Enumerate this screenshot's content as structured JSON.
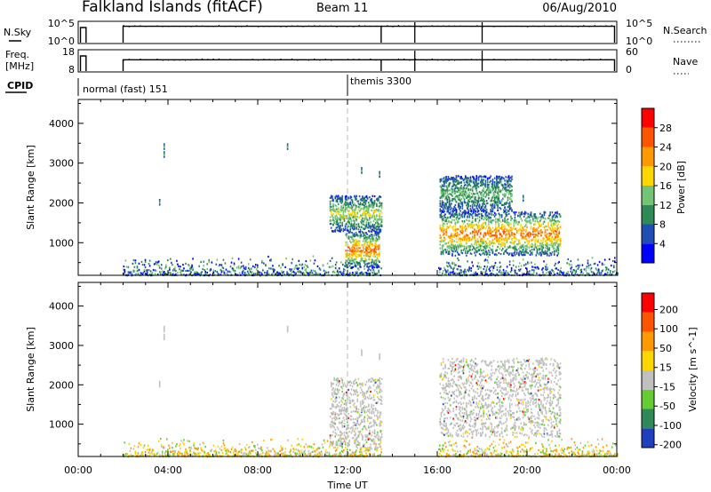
{
  "header": {
    "title": "Falkland Islands (fitACF)",
    "beam": "Beam 11",
    "date": "06/Aug/2010"
  },
  "noise_panel": {
    "left_label": "N.Sky",
    "left_ticks": [
      "10^5",
      "10^0"
    ],
    "right_label": "N.Search",
    "right_ticks": [
      "10^5",
      "10^0"
    ]
  },
  "freq_panel": {
    "left_label_1": "Freq.",
    "left_label_2": "[MHz]",
    "left_ticks": [
      18,
      8
    ],
    "right_label": "Nave",
    "right_ticks": [
      60,
      0
    ]
  },
  "cpid_panel": {
    "label": "CPID",
    "programs": [
      {
        "name": "normal (fast) 151",
        "start_hour": 0.1
      },
      {
        "name": "themis 3300",
        "start_hour": 12.0
      }
    ]
  },
  "time_axis": {
    "label": "Time UT",
    "range_hours": [
      0,
      24
    ],
    "tick_labels": [
      "00:00",
      "04:00",
      "08:00",
      "12:00",
      "16:00",
      "20:00",
      "00:00"
    ],
    "tick_hours": [
      0,
      4,
      8,
      12,
      16,
      20,
      24
    ]
  },
  "chart_data": [
    {
      "type": "heatmap",
      "name": "power",
      "ylabel": "Slant Range [km]",
      "ylim": [
        180,
        4600
      ],
      "yticks": [
        1000,
        2000,
        3000,
        4000
      ],
      "colorbar_label": "Power [dB]",
      "colorbar_ticks": [
        4,
        8,
        12,
        16,
        20,
        24,
        28
      ],
      "colorbar_range": [
        0,
        32
      ],
      "colors": [
        "#0000ff",
        "#1f4fb5",
        "#2e8b57",
        "#74c476",
        "#ffd700",
        "#ff9900",
        "#ff5500",
        "#ff0000"
      ],
      "data_gaps_hours": [
        [
          0.35,
          2.0
        ],
        [
          13.5,
          16.0
        ]
      ],
      "echo_regions": [
        {
          "t": [
            11.2,
            13.5
          ],
          "range": [
            1300,
            2200
          ],
          "level": 3
        },
        {
          "t": [
            11.9,
            13.4
          ],
          "range": [
            400,
            1300
          ],
          "level": 5
        },
        {
          "t": [
            16.1,
            21.5
          ],
          "range": [
            700,
            1800
          ],
          "level": 5
        },
        {
          "t": [
            16.1,
            19.3
          ],
          "range": [
            1800,
            2700
          ],
          "level": 2
        }
      ]
    },
    {
      "type": "heatmap",
      "name": "velocity",
      "ylabel": "Slant Range [km]",
      "ylim": [
        180,
        4600
      ],
      "yticks": [
        1000,
        2000,
        3000,
        4000
      ],
      "colorbar_label": "Velocity [m s^-1]",
      "colorbar_ticks": [
        200,
        100,
        50,
        15,
        -15,
        -50,
        -100,
        -200
      ],
      "colors": [
        "#1f3fbf",
        "#2e8b57",
        "#66cc33",
        "#c0c0c0",
        "#ffd700",
        "#ff9900",
        "#ff5500",
        "#ff0000"
      ],
      "echo_regions": [
        {
          "t": [
            11.2,
            13.5
          ],
          "range": [
            400,
            2200
          ],
          "level": 3
        },
        {
          "t": [
            16.1,
            21.5
          ],
          "range": [
            700,
            2700
          ],
          "level": 3
        }
      ]
    }
  ]
}
